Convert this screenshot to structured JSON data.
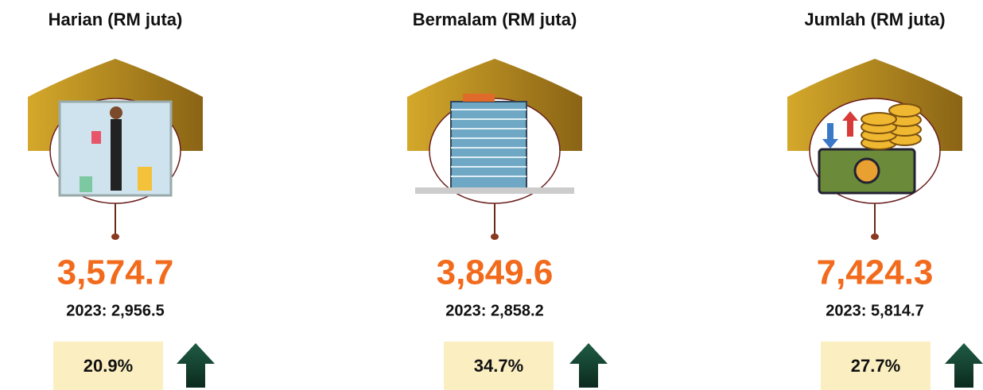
{
  "panels": [
    {
      "title": "Harian (RM juta)",
      "value": "3,574.7",
      "previous": "2023: 2,956.5",
      "change": "20.9%"
    },
    {
      "title": "Bermalam (RM juta)",
      "value": "3,849.6",
      "previous": "2023: 2,858.2",
      "change": "34.7%"
    },
    {
      "title": "Jumlah (RM juta)",
      "value": "7,424.3",
      "previous": "2023: 5,814.7",
      "change": "27.7%"
    }
  ]
}
